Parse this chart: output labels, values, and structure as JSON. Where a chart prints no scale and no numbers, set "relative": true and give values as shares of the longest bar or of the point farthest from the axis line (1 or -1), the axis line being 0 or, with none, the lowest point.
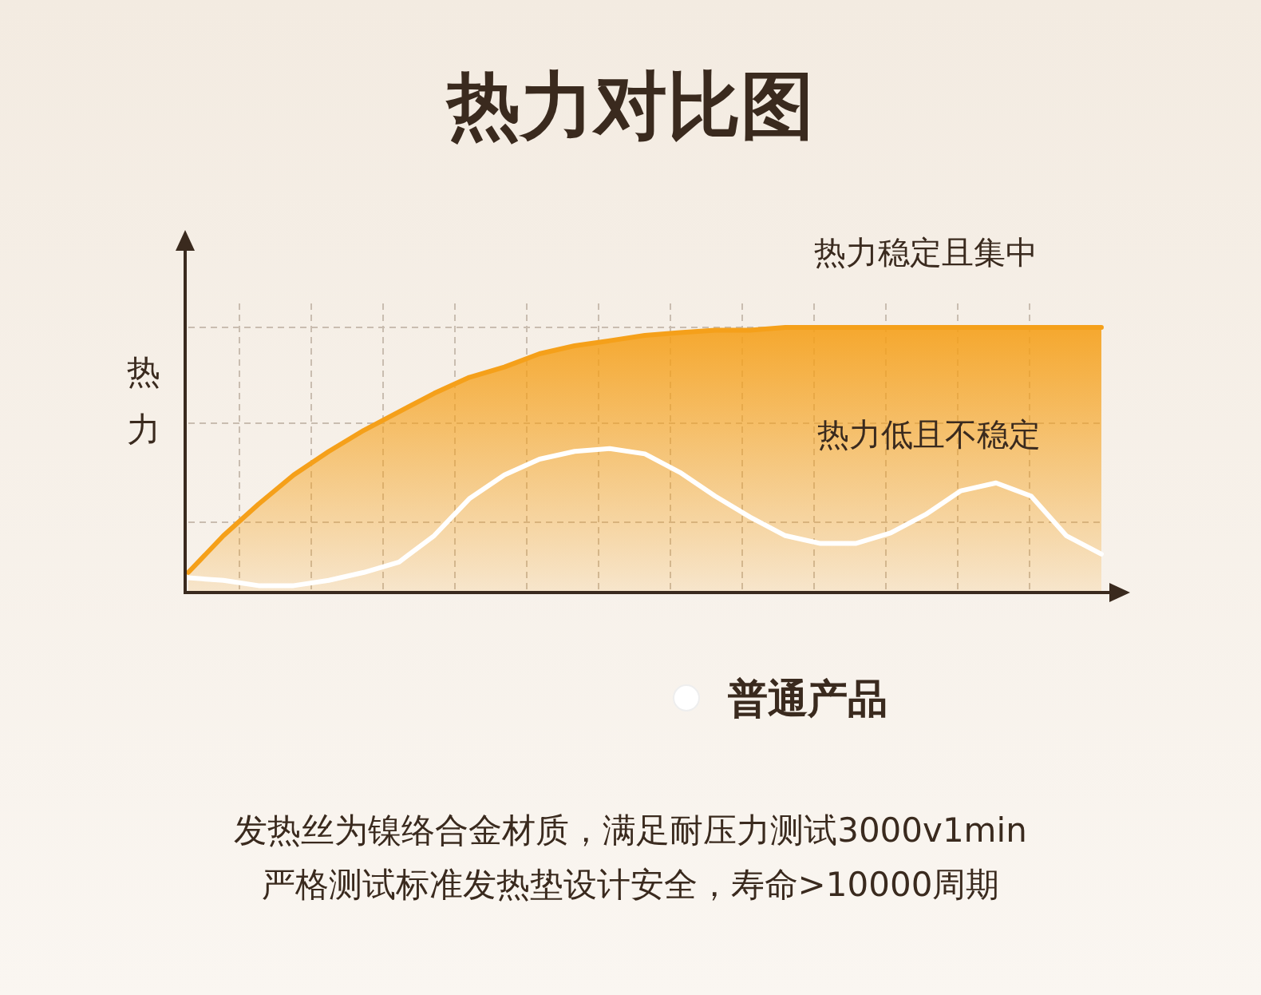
{
  "chart_data": {
    "type": "line",
    "title": "热力对比图",
    "ylabel": "热力",
    "relative": true,
    "grid": true,
    "legend": "bottom",
    "categories": [
      null,
      null,
      null,
      null,
      null,
      null,
      null,
      null,
      null,
      null,
      null,
      null,
      null,
      null,
      null,
      null,
      null,
      null,
      null,
      null,
      null,
      null,
      null,
      null,
      null,
      null,
      null
    ],
    "series": [
      {
        "type": "area",
        "color": "#f5a01a",
        "values": [
          0.07,
          0.21,
          0.33,
          0.44,
          0.53,
          0.61,
          0.68,
          0.75,
          0.81,
          0.85,
          0.9,
          0.93,
          0.95,
          0.97,
          0.98,
          0.99,
          0.99,
          1.0,
          1.0,
          1.0,
          1.0,
          1.0,
          1.0,
          1.0,
          1.0,
          1.0,
          1.0
        ]
      },
      {
        "name": "普通产品",
        "color": "#ffffff",
        "values": [
          0.05,
          0.04,
          0.02,
          0.02,
          0.04,
          0.07,
          0.11,
          0.21,
          0.35,
          0.44,
          0.5,
          0.53,
          0.54,
          0.52,
          0.45,
          0.36,
          0.28,
          0.21,
          0.18,
          0.18,
          0.22,
          0.29,
          0.38,
          0.41,
          0.36,
          0.21,
          0.14
        ]
      }
    ],
    "annotations": [
      "热力稳定且集中",
      "热力低且不稳定",
      "发热丝为镍络合金材质，满足耐压力测试3000v1min",
      "严格测试标准发热垫设计安全，寿命>10000周期"
    ]
  }
}
